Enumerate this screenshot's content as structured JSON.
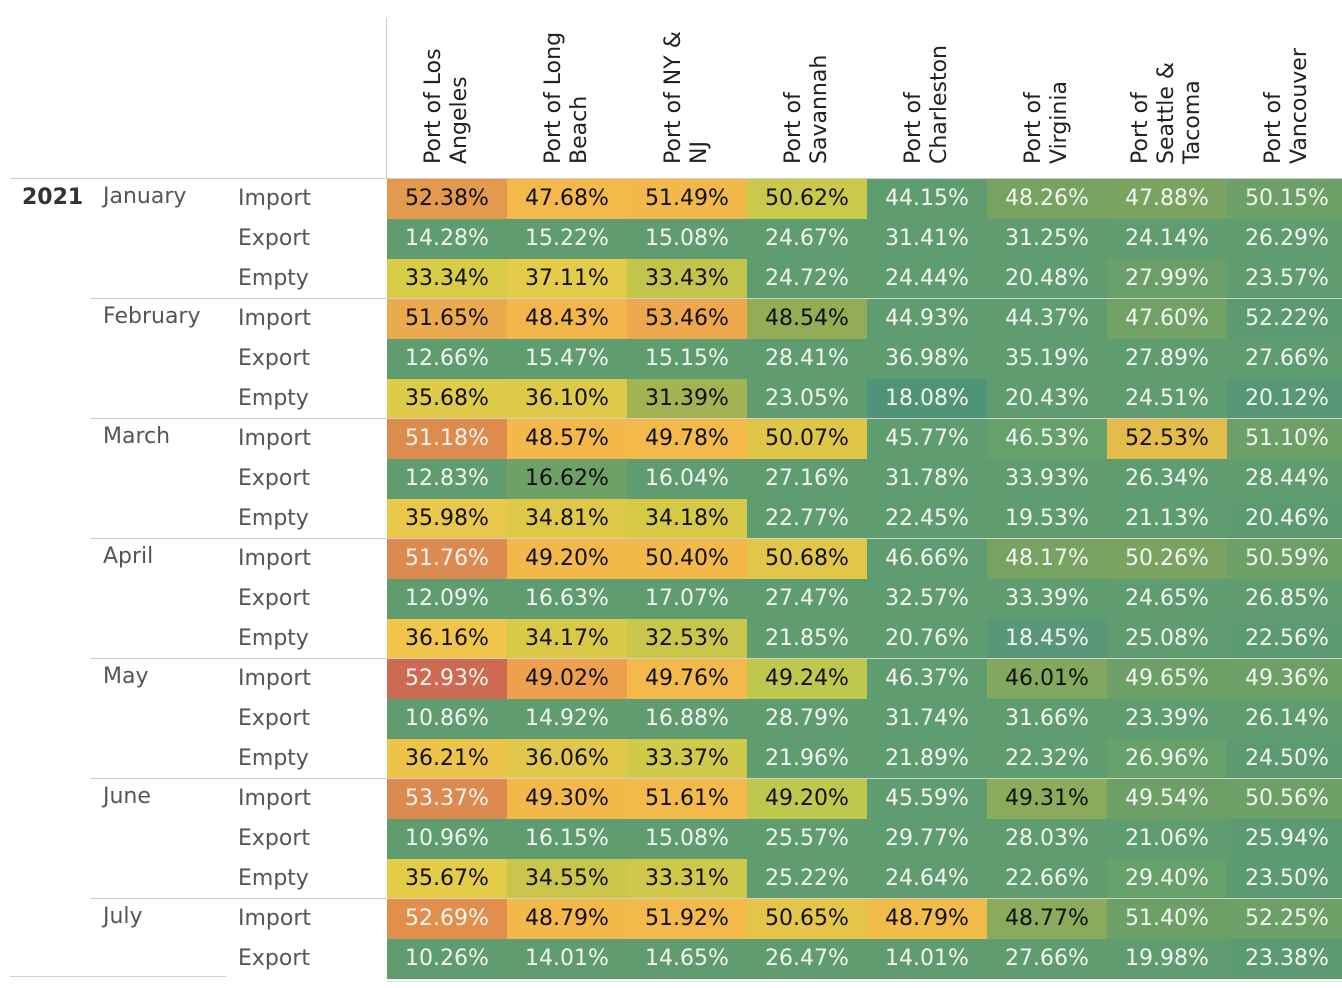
{
  "chart_data": {
    "type": "heatmap",
    "title": "",
    "columns": [
      "Port of Los\nAngeles",
      "Port of Long\nBeach",
      "Port of NY &\nNJ",
      "Port of\nSavannah",
      "Port of\nCharleston",
      "Port of\nVirginia",
      "Port of\nSeattle &\nTacoma",
      "Port of\nVancouver"
    ],
    "year": "2021",
    "row_types": [
      "Import",
      "Export",
      "Empty"
    ],
    "months": [
      {
        "name": "January",
        "rows": [
          [
            "52.38%",
            "47.68%",
            "51.49%",
            "50.62%",
            "44.15%",
            "48.26%",
            "47.88%",
            "50.15%"
          ],
          [
            "14.28%",
            "15.22%",
            "15.08%",
            "24.67%",
            "31.41%",
            "31.25%",
            "24.14%",
            "26.29%"
          ],
          [
            "33.34%",
            "37.11%",
            "33.43%",
            "24.72%",
            "24.44%",
            "20.48%",
            "27.99%",
            "23.57%"
          ]
        ]
      },
      {
        "name": "February",
        "rows": [
          [
            "51.65%",
            "48.43%",
            "53.46%",
            "48.54%",
            "44.93%",
            "44.37%",
            "47.60%",
            "52.22%"
          ],
          [
            "12.66%",
            "15.47%",
            "15.15%",
            "28.41%",
            "36.98%",
            "35.19%",
            "27.89%",
            "27.66%"
          ],
          [
            "35.68%",
            "36.10%",
            "31.39%",
            "23.05%",
            "18.08%",
            "20.43%",
            "24.51%",
            "20.12%"
          ]
        ]
      },
      {
        "name": "March",
        "rows": [
          [
            "51.18%",
            "48.57%",
            "49.78%",
            "50.07%",
            "45.77%",
            "46.53%",
            "52.53%",
            "51.10%"
          ],
          [
            "12.83%",
            "16.62%",
            "16.04%",
            "27.16%",
            "31.78%",
            "33.93%",
            "26.34%",
            "28.44%"
          ],
          [
            "35.98%",
            "34.81%",
            "34.18%",
            "22.77%",
            "22.45%",
            "19.53%",
            "21.13%",
            "20.46%"
          ]
        ]
      },
      {
        "name": "April",
        "rows": [
          [
            "51.76%",
            "49.20%",
            "50.40%",
            "50.68%",
            "46.66%",
            "48.17%",
            "50.26%",
            "50.59%"
          ],
          [
            "12.09%",
            "16.63%",
            "17.07%",
            "27.47%",
            "32.57%",
            "33.39%",
            "24.65%",
            "26.85%"
          ],
          [
            "36.16%",
            "34.17%",
            "32.53%",
            "21.85%",
            "20.76%",
            "18.45%",
            "25.08%",
            "22.56%"
          ]
        ]
      },
      {
        "name": "May",
        "rows": [
          [
            "52.93%",
            "49.02%",
            "49.76%",
            "49.24%",
            "46.37%",
            "46.01%",
            "49.65%",
            "49.36%"
          ],
          [
            "10.86%",
            "14.92%",
            "16.88%",
            "28.79%",
            "31.74%",
            "31.66%",
            "23.39%",
            "26.14%"
          ],
          [
            "36.21%",
            "36.06%",
            "33.37%",
            "21.96%",
            "21.89%",
            "22.32%",
            "26.96%",
            "24.50%"
          ]
        ]
      },
      {
        "name": "June",
        "rows": [
          [
            "53.37%",
            "49.30%",
            "51.61%",
            "49.20%",
            "45.59%",
            "49.31%",
            "49.54%",
            "50.56%"
          ],
          [
            "10.96%",
            "16.15%",
            "15.08%",
            "25.57%",
            "29.77%",
            "28.03%",
            "21.06%",
            "25.94%"
          ],
          [
            "35.67%",
            "34.55%",
            "33.31%",
            "25.22%",
            "24.64%",
            "22.66%",
            "29.40%",
            "23.50%"
          ]
        ]
      },
      {
        "name": "July",
        "rows": [
          [
            "52.69%",
            "48.79%",
            "51.92%",
            "50.65%",
            "48.79%",
            "48.77%",
            "51.40%",
            "52.25%"
          ],
          [
            "10.26%",
            "14.01%",
            "14.65%",
            "26.47%",
            "14.01%",
            "27.66%",
            "19.98%",
            "23.38%"
          ]
        ]
      }
    ],
    "cell_colors": [
      [
        "#e39a4e",
        "#f3b94a",
        "#f2b84a",
        "#c9c94c",
        "#5f9c6f",
        "#78a262",
        "#7aa362",
        "#6ca066"
      ],
      [
        "#5f9c6f",
        "#5f9c6f",
        "#5f9c6f",
        "#5f9c6f",
        "#5f9c6f",
        "#5f9c6f",
        "#5f9c6f",
        "#5f9c6f"
      ],
      [
        "#d8cc46",
        "#e4cb49",
        "#c3c54b",
        "#5f9c6f",
        "#5f9c6f",
        "#5f9c6f",
        "#6a9f6b",
        "#5f9c6f"
      ],
      [
        "#ecaa4e",
        "#f3b64a",
        "#eda84d",
        "#93ad57",
        "#5f9c6f",
        "#5f9c6f",
        "#72a165",
        "#5c9a72"
      ],
      [
        "#5f9c6f",
        "#5f9c6f",
        "#5f9c6f",
        "#5f9c6f",
        "#5f9c6f",
        "#5f9c6f",
        "#5f9c6f",
        "#5f9c6f"
      ],
      [
        "#ddcb49",
        "#dcca48",
        "#a3b353",
        "#5f9c6f",
        "#4f9478",
        "#5f9c6f",
        "#5f9c6f",
        "#569776"
      ],
      [
        "#de8b4e",
        "#f3b74a",
        "#f3b94a",
        "#e0c647",
        "#5f9c6f",
        "#66a06b",
        "#e3bc4c",
        "#6ca066"
      ],
      [
        "#5f9c6f",
        "#6ea068",
        "#5f9c6f",
        "#5f9c6f",
        "#5f9c6f",
        "#5f9c6f",
        "#5f9c6f",
        "#5f9c6f"
      ],
      [
        "#e8c74b",
        "#dfc847",
        "#d6c946",
        "#5f9c6f",
        "#5f9c6f",
        "#5f9c6f",
        "#5f9c6f",
        "#5c9a72"
      ],
      [
        "#dc8a4f",
        "#f3b84a",
        "#f2b94a",
        "#e2c64a",
        "#5f9c6f",
        "#78a262",
        "#7aa362",
        "#6ca066"
      ],
      [
        "#5f9c6f",
        "#5f9c6f",
        "#5f9c6f",
        "#5f9c6f",
        "#5f9c6f",
        "#5f9c6f",
        "#5f9c6f",
        "#5f9c6f"
      ],
      [
        "#f0c64a",
        "#d9c947",
        "#c9c74b",
        "#5f9c6f",
        "#5f9c6f",
        "#58977a",
        "#5f9c6f",
        "#5c9a72"
      ],
      [
        "#cf6a52",
        "#eda04e",
        "#f3b94a",
        "#bfc84c",
        "#5f9c6f",
        "#82a75e",
        "#6ca066",
        "#6ca066"
      ],
      [
        "#5f9c6f",
        "#5f9c6f",
        "#5f9c6f",
        "#5f9c6f",
        "#5f9c6f",
        "#5f9c6f",
        "#5f9c6f",
        "#5f9c6f"
      ],
      [
        "#ecc44a",
        "#e2c84a",
        "#d0c949",
        "#5f9c6f",
        "#5f9c6f",
        "#5f9c6f",
        "#66a06b",
        "#5c9a72"
      ],
      [
        "#dc8a4f",
        "#f3b84a",
        "#f3b94a",
        "#bfc84c",
        "#5f9c6f",
        "#8aab5c",
        "#6ca066",
        "#6ca066"
      ],
      [
        "#5f9c6f",
        "#5f9c6f",
        "#5f9c6f",
        "#5f9c6f",
        "#5f9c6f",
        "#5f9c6f",
        "#5f9c6f",
        "#5c9a72"
      ],
      [
        "#e3cc47",
        "#c9c64b",
        "#cfc84a",
        "#5f9c6f",
        "#5f9c6f",
        "#5f9c6f",
        "#66a06b",
        "#5c9a72"
      ],
      [
        "#e28f4d",
        "#f3b84a",
        "#f3b94a",
        "#e4c54a",
        "#f2bc4b",
        "#8aab5c",
        "#6ca066",
        "#6ca066"
      ],
      [
        "#5f9c6f",
        "#5f9c6f",
        "#5f9c6f",
        "#5f9c6f",
        "#5f9c6f",
        "#5f9c6f",
        "#5f9c6f",
        "#5c9a72"
      ]
    ],
    "dark_text_threshold_note": ""
  },
  "text_dark_cells": [
    [
      1,
      1,
      1,
      1,
      0,
      0,
      0,
      0
    ],
    [
      0,
      0,
      0,
      0,
      0,
      0,
      0,
      0
    ],
    [
      1,
      1,
      1,
      0,
      0,
      0,
      0,
      0
    ],
    [
      1,
      1,
      1,
      1,
      0,
      0,
      0,
      0
    ],
    [
      0,
      0,
      0,
      0,
      0,
      0,
      0,
      0
    ],
    [
      1,
      1,
      1,
      0,
      0,
      0,
      0,
      0
    ],
    [
      0,
      1,
      1,
      1,
      0,
      0,
      1,
      0
    ],
    [
      0,
      1,
      0,
      0,
      0,
      0,
      0,
      0
    ],
    [
      1,
      1,
      1,
      0,
      0,
      0,
      0,
      0
    ],
    [
      0,
      1,
      1,
      1,
      0,
      0,
      0,
      0
    ],
    [
      0,
      0,
      0,
      0,
      0,
      0,
      0,
      0
    ],
    [
      1,
      1,
      1,
      0,
      0,
      0,
      0,
      0
    ],
    [
      0,
      1,
      1,
      1,
      0,
      1,
      0,
      0
    ],
    [
      0,
      0,
      0,
      0,
      0,
      0,
      0,
      0
    ],
    [
      1,
      1,
      1,
      0,
      0,
      0,
      0,
      0
    ],
    [
      0,
      1,
      1,
      1,
      0,
      1,
      0,
      0
    ],
    [
      0,
      0,
      0,
      0,
      0,
      0,
      0,
      0
    ],
    [
      1,
      1,
      1,
      0,
      0,
      0,
      0,
      0
    ],
    [
      0,
      1,
      1,
      1,
      1,
      1,
      0,
      0
    ],
    [
      0,
      0,
      0,
      0,
      0,
      0,
      0,
      0
    ]
  ]
}
